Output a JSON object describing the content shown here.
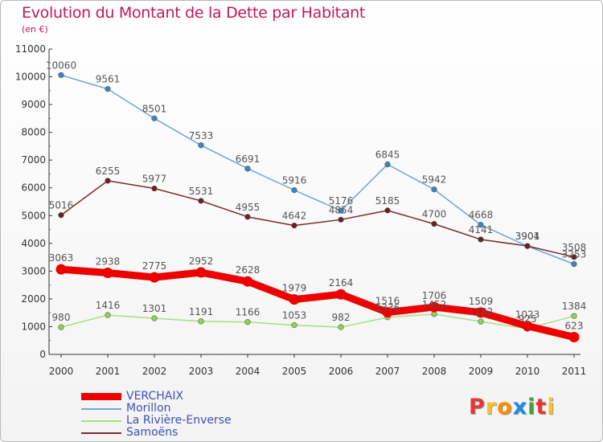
{
  "header": {
    "title": "Evolution du Montant de la Dette par Habitant",
    "subtitle": "(en €)"
  },
  "logo": {
    "text": "Proxiti",
    "colors": [
      "#e53935",
      "#fbc02d",
      "#fb8c00",
      "#1e88e5",
      "#43a047",
      "#e53935",
      "#fbc02d"
    ]
  },
  "chart_data": {
    "type": "line",
    "title": "Evolution du Montant de la Dette par Habitant",
    "subtitle": "(en €)",
    "x": [
      "2000",
      "2001",
      "2002",
      "2003",
      "2004",
      "2005",
      "2006",
      "2007",
      "2008",
      "2009",
      "2010",
      "2011"
    ],
    "ylim": [
      0,
      11000
    ],
    "yticks": [
      0,
      1000,
      2000,
      3000,
      4000,
      5000,
      6000,
      7000,
      8000,
      9000,
      10000,
      11000
    ],
    "grid": false,
    "legend_position": "bottom-left",
    "series": [
      {
        "name": "VERCHAIX",
        "color": "#ee0000",
        "values": [
          3063,
          2938,
          2775,
          2952,
          2628,
          1979,
          2164,
          1516,
          1706,
          1509,
          1023,
          623
        ]
      },
      {
        "name": "Morillon",
        "color": "#5b9bd5",
        "values": [
          10060,
          9561,
          8501,
          7533,
          6691,
          5916,
          5176,
          6845,
          5942,
          4668,
          3901,
          3253
        ]
      },
      {
        "name": "La Rivière-Enverse",
        "color": "#99dd66",
        "values": [
          980,
          1416,
          1301,
          1191,
          1166,
          1053,
          982,
          1336,
          1452,
          1182,
          925,
          1384
        ]
      },
      {
        "name": "Samoëns",
        "color": "#7b2b2b",
        "values": [
          5016,
          6255,
          5977,
          5531,
          4955,
          4642,
          4854,
          5185,
          4700,
          4141,
          3904,
          3508
        ]
      }
    ]
  }
}
